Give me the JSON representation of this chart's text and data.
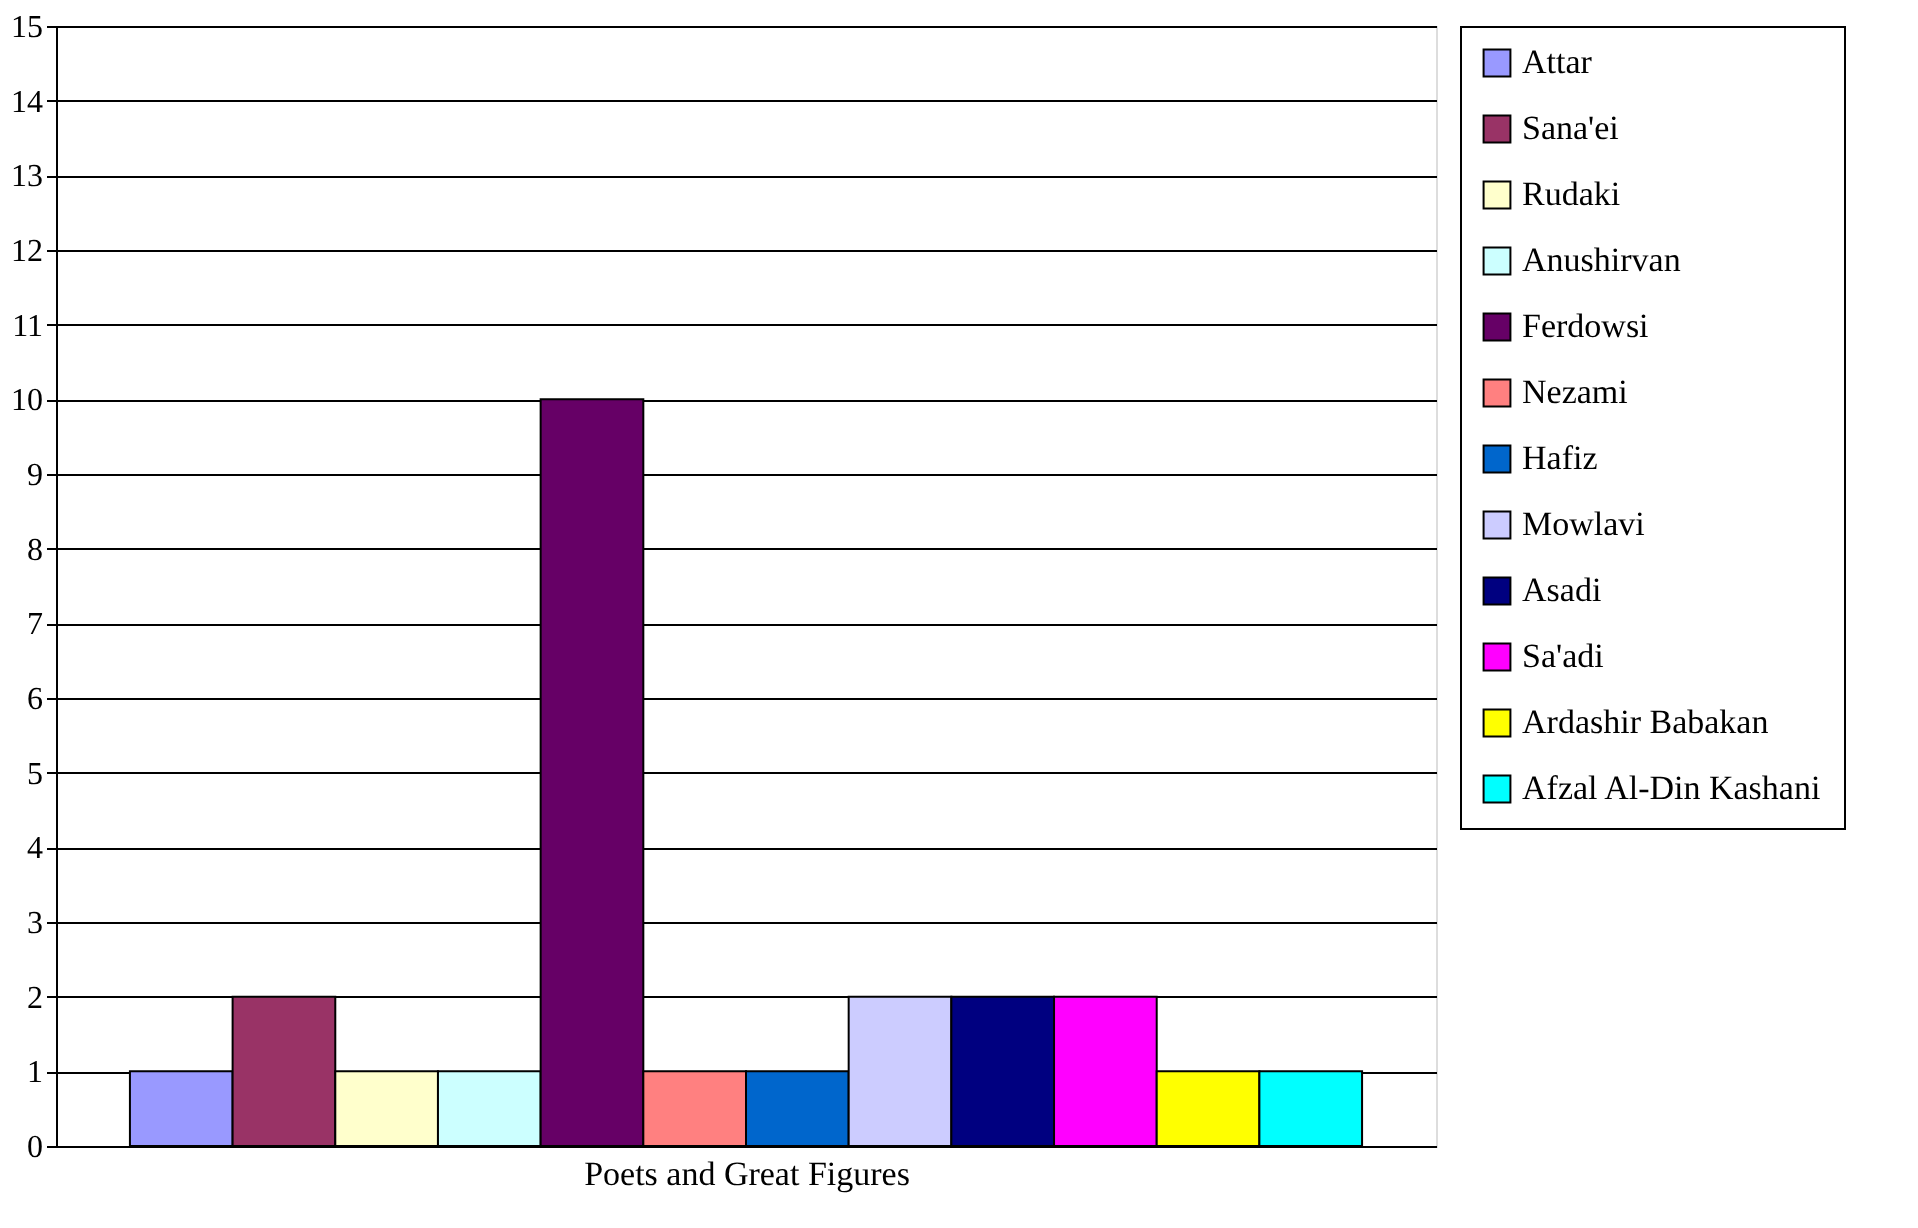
{
  "chart_data": {
    "type": "bar",
    "xlabel": "Poets and Great Figures",
    "categories": [
      null
    ],
    "series": [
      {
        "name": "Attar",
        "color": "#9999ff",
        "values": [
          1
        ]
      },
      {
        "name": "Sana'ei",
        "color": "#993366",
        "values": [
          2
        ]
      },
      {
        "name": "Rudaki",
        "color": "#ffffcc",
        "values": [
          1
        ]
      },
      {
        "name": "Anushirvan",
        "color": "#ccffff",
        "values": [
          1
        ]
      },
      {
        "name": "Ferdowsi",
        "color": "#660066",
        "values": [
          10
        ]
      },
      {
        "name": "Nezami",
        "color": "#ff8080",
        "values": [
          1
        ]
      },
      {
        "name": "Hafiz",
        "color": "#0066cc",
        "values": [
          1
        ]
      },
      {
        "name": "Mowlavi",
        "color": "#ccccff",
        "values": [
          2
        ]
      },
      {
        "name": "Asadi",
        "color": "#000080",
        "values": [
          2
        ]
      },
      {
        "name": "Sa'adi",
        "color": "#ff00ff",
        "values": [
          2
        ]
      },
      {
        "name": "Ardashir Babakan",
        "color": "#ffff00",
        "values": [
          1
        ]
      },
      {
        "name": "Afzal Al-Din Kashani",
        "color": "#00ffff",
        "values": [
          1
        ]
      }
    ],
    "ylim": [
      0,
      15
    ],
    "yticks": [
      0,
      1,
      2,
      3,
      4,
      5,
      6,
      7,
      8,
      9,
      10,
      11,
      12,
      13,
      14,
      15
    ],
    "grid": "y",
    "legend": "right"
  }
}
